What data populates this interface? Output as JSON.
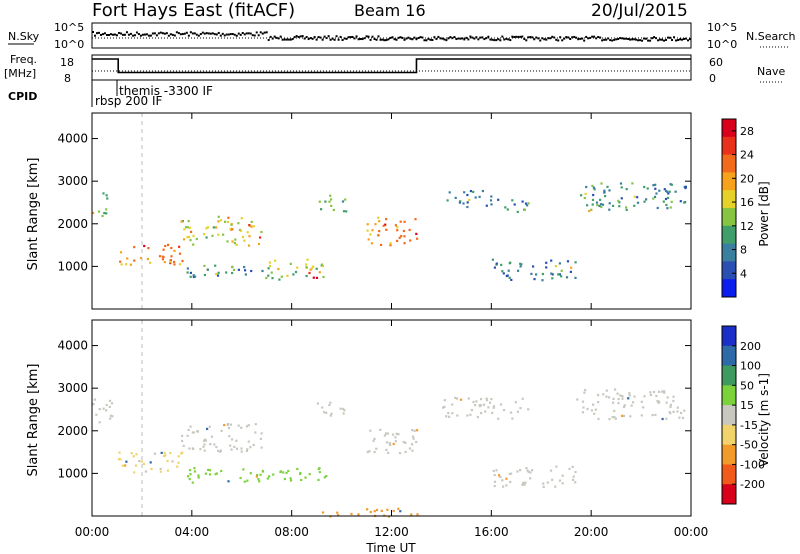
{
  "header": {
    "title": "Fort Hays East (fitACF)",
    "beam": "Beam 16",
    "date": "20/Jul/2015"
  },
  "strips": {
    "nsky": {
      "label": "N.Sky",
      "ticks": [
        "10^5",
        "10^0"
      ],
      "right_ticks": [
        "10^5",
        "10^0"
      ],
      "right_label": "N.Search"
    },
    "freq": {
      "label_line1": "Freq.",
      "label_line2": "[MHz]",
      "ticks": [
        "18",
        "8"
      ],
      "right_ticks": [
        "60",
        "0"
      ],
      "right_label": "Nave",
      "segments": [
        {
          "start_h": 0.0,
          "end_h": 1.05,
          "value": 18
        },
        {
          "start_h": 1.05,
          "end_h": 13.0,
          "value": 10.5
        },
        {
          "start_h": 13.0,
          "end_h": 24.0,
          "value": 18
        }
      ]
    },
    "cpid": {
      "label": "CPID",
      "entries": [
        {
          "text": "rbsp 200 IF",
          "start_h": 0.0
        },
        {
          "text": "themis -3300 IF",
          "start_h": 1.05
        }
      ]
    }
  },
  "x_axis": {
    "label": "Time UT",
    "ticks": [
      "00:00",
      "04:00",
      "08:00",
      "12:00",
      "16:00",
      "20:00",
      "00:00"
    ]
  },
  "chart_data": [
    {
      "type": "heatmap",
      "name": "power",
      "ylabel": "Slant Range [km]",
      "yticks": [
        "1000",
        "2000",
        "3000",
        "4000"
      ],
      "ylim": [
        0,
        4600
      ],
      "xlim_hours": [
        0,
        24
      ],
      "colorbar": {
        "label": "Power [dB]",
        "ticks": [
          "4",
          "8",
          "12",
          "16",
          "20",
          "24",
          "28"
        ],
        "range": [
          0,
          30
        ],
        "colors": [
          "#0b1ef0",
          "#2a4fb2",
          "#3b7fa0",
          "#3f9e6a",
          "#86c441",
          "#e6d12a",
          "#f7a21c",
          "#f26b1d",
          "#e8301b",
          "#d9001b"
        ]
      },
      "regions": [
        {
          "t0": 0.0,
          "t1": 0.6,
          "r0": 2200,
          "r1": 2800,
          "value": 12
        },
        {
          "t0": 1.0,
          "t1": 3.6,
          "r0": 1050,
          "r1": 1550,
          "value": 21
        },
        {
          "t0": 3.5,
          "t1": 6.8,
          "r0": 1500,
          "r1": 2200,
          "value": 15
        },
        {
          "t0": 3.6,
          "t1": 7.2,
          "r0": 750,
          "r1": 1050,
          "value": 9
        },
        {
          "t0": 7.0,
          "t1": 9.3,
          "r0": 700,
          "r1": 1200,
          "value": 14
        },
        {
          "t0": 8.6,
          "t1": 9.0,
          "r0": 750,
          "r1": 1050,
          "value": 24
        },
        {
          "t0": 9.0,
          "t1": 10.2,
          "r0": 2300,
          "r1": 2700,
          "value": 12
        },
        {
          "t0": 11.0,
          "t1": 13.0,
          "r0": 1500,
          "r1": 2200,
          "value": 20
        },
        {
          "t0": 14.0,
          "t1": 16.0,
          "r0": 2400,
          "r1": 2800,
          "value": 8
        },
        {
          "t0": 16.0,
          "t1": 17.6,
          "r0": 2300,
          "r1": 2600,
          "value": 9
        },
        {
          "t0": 16.0,
          "t1": 19.4,
          "r0": 700,
          "r1": 1200,
          "value": 7
        },
        {
          "t0": 19.4,
          "t1": 23.8,
          "r0": 2300,
          "r1": 3000,
          "value": 9
        }
      ]
    },
    {
      "type": "heatmap",
      "name": "velocity",
      "ylabel": "Slant Range [km]",
      "yticks": [
        "1000",
        "2000",
        "3000",
        "4000"
      ],
      "ylim": [
        0,
        4600
      ],
      "xlim_hours": [
        0,
        24
      ],
      "colorbar": {
        "label": "Velocity [m s-1]",
        "ticks": [
          "200",
          "100",
          "50",
          "15",
          "-15",
          "-50",
          "-100",
          "-200"
        ],
        "colors": [
          "#1a2fc8",
          "#2e6aa8",
          "#3f9a5f",
          "#7bd23b",
          "#c8c8c0",
          "#f0d36a",
          "#f29b2b",
          "#f05a1a",
          "#d9001b"
        ]
      },
      "regions": [
        {
          "t0": 0.0,
          "t1": 0.8,
          "r0": 2100,
          "r1": 2800,
          "value": 0
        },
        {
          "t0": 1.0,
          "t1": 3.6,
          "r0": 1050,
          "r1": 1550,
          "value": -20
        },
        {
          "t0": 3.5,
          "t1": 6.8,
          "r0": 1500,
          "r1": 2200,
          "value": 0
        },
        {
          "t0": 3.6,
          "t1": 9.5,
          "r0": 800,
          "r1": 1150,
          "value": 40
        },
        {
          "t0": 9.0,
          "t1": 10.2,
          "r0": 2300,
          "r1": 2700,
          "value": 0
        },
        {
          "t0": 11.0,
          "t1": 13.0,
          "r0": 1500,
          "r1": 2200,
          "value": 0
        },
        {
          "t0": 9.0,
          "t1": 13.0,
          "r0": 0,
          "r1": 200,
          "value": -60
        },
        {
          "t0": 14.0,
          "t1": 17.6,
          "r0": 2300,
          "r1": 2800,
          "value": 0
        },
        {
          "t0": 16.0,
          "t1": 19.4,
          "r0": 700,
          "r1": 1200,
          "value": 0
        },
        {
          "t0": 19.4,
          "t1": 23.8,
          "r0": 2300,
          "r1": 3000,
          "value": 0
        }
      ]
    }
  ]
}
